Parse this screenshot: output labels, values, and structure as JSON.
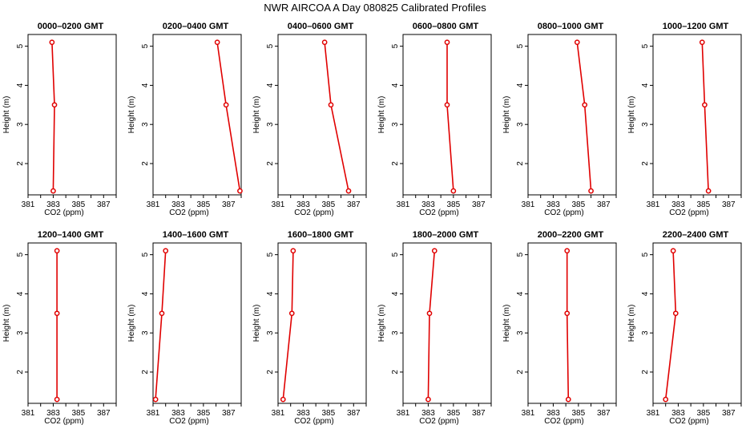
{
  "title": "NWR AIRCOA A  Day 080825  Calibrated Profiles",
  "chart_data": [
    {
      "type": "line",
      "title": "0000–0200 GMT",
      "xlabel": "CO2 (ppm)",
      "ylabel": "Height (m)",
      "xlim": [
        381,
        388
      ],
      "ylim": [
        1.2,
        5.3
      ],
      "xticks": [
        381,
        383,
        385,
        387
      ],
      "yticks": [
        2,
        3,
        4,
        5
      ],
      "x": [
        382.9,
        383.1,
        383.0
      ],
      "y": [
        5.1,
        3.5,
        1.3
      ]
    },
    {
      "type": "line",
      "title": "0200–0400 GMT",
      "xlabel": "CO2 (ppm)",
      "ylabel": "Height (m)",
      "xlim": [
        381,
        388
      ],
      "ylim": [
        1.2,
        5.3
      ],
      "xticks": [
        381,
        383,
        385,
        387
      ],
      "yticks": [
        2,
        3,
        4,
        5
      ],
      "x": [
        386.1,
        386.8,
        387.9
      ],
      "y": [
        5.1,
        3.5,
        1.3
      ]
    },
    {
      "type": "line",
      "title": "0400–0600 GMT",
      "xlabel": "CO2 (ppm)",
      "ylabel": "Height (m)",
      "xlim": [
        381,
        388
      ],
      "ylim": [
        1.2,
        5.3
      ],
      "xticks": [
        381,
        383,
        385,
        387
      ],
      "yticks": [
        2,
        3,
        4,
        5
      ],
      "x": [
        384.7,
        385.2,
        386.6
      ],
      "y": [
        5.1,
        3.5,
        1.3
      ]
    },
    {
      "type": "line",
      "title": "0600–0800 GMT",
      "xlabel": "CO2 (ppm)",
      "ylabel": "Height (m)",
      "xlim": [
        381,
        388
      ],
      "ylim": [
        1.2,
        5.3
      ],
      "xticks": [
        381,
        383,
        385,
        387
      ],
      "yticks": [
        2,
        3,
        4,
        5
      ],
      "x": [
        384.5,
        384.5,
        385.0
      ],
      "y": [
        5.1,
        3.5,
        1.3
      ]
    },
    {
      "type": "line",
      "title": "0800–1000 GMT",
      "xlabel": "CO2 (ppm)",
      "ylabel": "Height (m)",
      "xlim": [
        381,
        388
      ],
      "ylim": [
        1.2,
        5.3
      ],
      "xticks": [
        381,
        383,
        385,
        387
      ],
      "yticks": [
        2,
        3,
        4,
        5
      ],
      "x": [
        384.9,
        385.5,
        386.0
      ],
      "y": [
        5.1,
        3.5,
        1.3
      ]
    },
    {
      "type": "line",
      "title": "1000–1200 GMT",
      "xlabel": "CO2 (ppm)",
      "ylabel": "Height (m)",
      "xlim": [
        381,
        388
      ],
      "ylim": [
        1.2,
        5.3
      ],
      "xticks": [
        381,
        383,
        385,
        387
      ],
      "yticks": [
        2,
        3,
        4,
        5
      ],
      "x": [
        384.9,
        385.1,
        385.4
      ],
      "y": [
        5.1,
        3.5,
        1.3
      ]
    },
    {
      "type": "line",
      "title": "1200–1400 GMT",
      "xlabel": "CO2 (ppm)",
      "ylabel": "Height (m)",
      "xlim": [
        381,
        388
      ],
      "ylim": [
        1.2,
        5.3
      ],
      "xticks": [
        381,
        383,
        385,
        387
      ],
      "yticks": [
        2,
        3,
        4,
        5
      ],
      "x": [
        383.3,
        383.3,
        383.3
      ],
      "y": [
        5.1,
        3.5,
        1.3
      ]
    },
    {
      "type": "line",
      "title": "1400–1600 GMT",
      "xlabel": "CO2 (ppm)",
      "ylabel": "Height (m)",
      "xlim": [
        381,
        388
      ],
      "ylim": [
        1.2,
        5.3
      ],
      "xticks": [
        381,
        383,
        385,
        387
      ],
      "yticks": [
        2,
        3,
        4,
        5
      ],
      "x": [
        382.0,
        381.7,
        381.2
      ],
      "y": [
        5.1,
        3.5,
        1.3
      ]
    },
    {
      "type": "line",
      "title": "1600–1800 GMT",
      "xlabel": "CO2 (ppm)",
      "ylabel": "Height (m)",
      "xlim": [
        381,
        388
      ],
      "ylim": [
        1.2,
        5.3
      ],
      "xticks": [
        381,
        383,
        385,
        387
      ],
      "yticks": [
        2,
        3,
        4,
        5
      ],
      "x": [
        382.2,
        382.1,
        381.4
      ],
      "y": [
        5.1,
        3.5,
        1.3
      ]
    },
    {
      "type": "line",
      "title": "1800–2000 GMT",
      "xlabel": "CO2 (ppm)",
      "ylabel": "Height (m)",
      "xlim": [
        381,
        388
      ],
      "ylim": [
        1.2,
        5.3
      ],
      "xticks": [
        381,
        383,
        385,
        387
      ],
      "yticks": [
        2,
        3,
        4,
        5
      ],
      "x": [
        383.5,
        383.1,
        383.0
      ],
      "y": [
        5.1,
        3.5,
        1.3
      ]
    },
    {
      "type": "line",
      "title": "2000–2200 GMT",
      "xlabel": "CO2 (ppm)",
      "ylabel": "Height (m)",
      "xlim": [
        381,
        388
      ],
      "ylim": [
        1.2,
        5.3
      ],
      "xticks": [
        381,
        383,
        385,
        387
      ],
      "yticks": [
        2,
        3,
        4,
        5
      ],
      "x": [
        384.1,
        384.1,
        384.2
      ],
      "y": [
        5.1,
        3.5,
        1.3
      ]
    },
    {
      "type": "line",
      "title": "2200–2400 GMT",
      "xlabel": "CO2 (ppm)",
      "ylabel": "Height (m)",
      "xlim": [
        381,
        388
      ],
      "ylim": [
        1.2,
        5.3
      ],
      "xticks": [
        381,
        383,
        385,
        387
      ],
      "yticks": [
        2,
        3,
        4,
        5
      ],
      "x": [
        382.6,
        382.8,
        382.0
      ],
      "y": [
        5.1,
        3.5,
        1.3
      ]
    }
  ]
}
